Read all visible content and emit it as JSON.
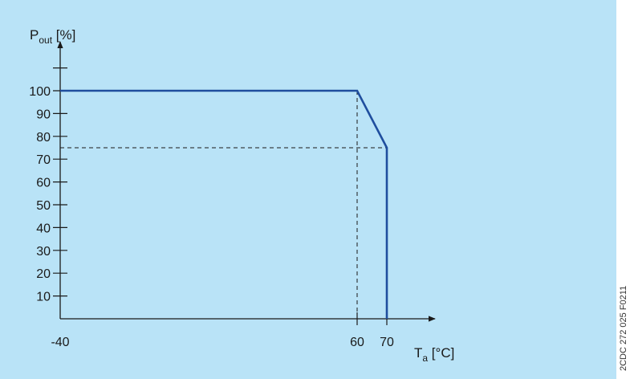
{
  "chart_data": {
    "type": "line",
    "x_axis": {
      "title_main": "T",
      "title_sub": "a",
      "title_unit": " [°C]",
      "tick_labels": [
        {
          "value": -40,
          "label": "-40"
        },
        {
          "value": 60,
          "label": "60"
        },
        {
          "value": 70,
          "label": "70"
        }
      ],
      "range": [
        -40,
        80
      ]
    },
    "y_axis": {
      "title_main": "P",
      "title_sub": "out",
      "title_unit": " [%]",
      "tick_labels": [
        {
          "value": 10,
          "label": "10"
        },
        {
          "value": 20,
          "label": "20"
        },
        {
          "value": 30,
          "label": "30"
        },
        {
          "value": 40,
          "label": "40"
        },
        {
          "value": 50,
          "label": "50"
        },
        {
          "value": 60,
          "label": "60"
        },
        {
          "value": 70,
          "label": "70"
        },
        {
          "value": 80,
          "label": "80"
        },
        {
          "value": 90,
          "label": "90"
        },
        {
          "value": 100,
          "label": "100"
        }
      ],
      "unlabeled_ticks": [
        110
      ],
      "range": [
        0,
        125
      ]
    },
    "series": [
      {
        "x": [
          -40,
          60,
          70,
          70
        ],
        "y": [
          100,
          100,
          75,
          0
        ]
      }
    ],
    "reference_lines": [
      {
        "from": [
          60,
          0
        ],
        "to": [
          60,
          100
        ],
        "style": "dashed"
      },
      {
        "from": [
          -40,
          75
        ],
        "to": [
          70,
          75
        ],
        "style": "dashed"
      }
    ],
    "grid": false,
    "legend": "none",
    "colors": {
      "background": "#b9e3f7",
      "series": "#1f4e9e",
      "axis": "#1a1a1a",
      "reference": "#1a1a1a"
    }
  },
  "figure_code": "2CDC 272 025 F0211"
}
